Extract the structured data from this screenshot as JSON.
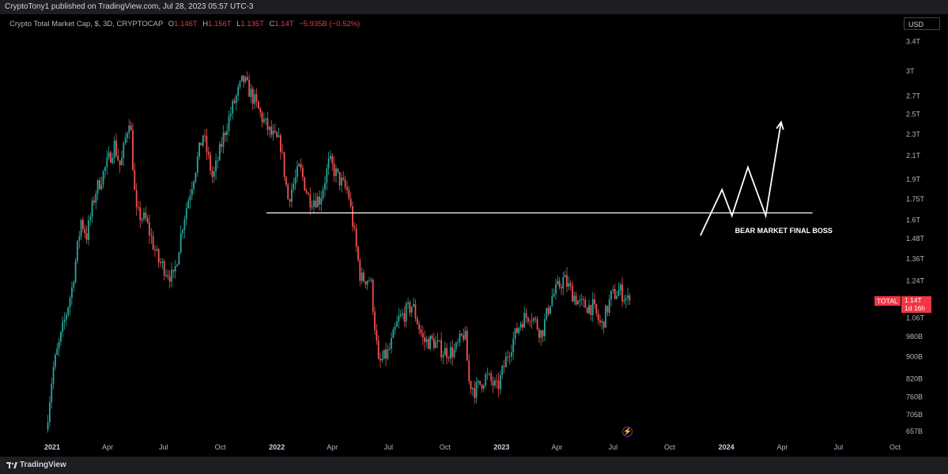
{
  "header": {
    "published": "CryptoTony1 published on TradingView.com, Jul 28, 2023 05:57 UTC-3"
  },
  "legend": {
    "symbol": "Crypto Total Market Cap, $, 3D, CRYPTOCAP",
    "o_key": "O",
    "o_val": "1.146T",
    "h_key": "H",
    "h_val": "1.156T",
    "l_key": "L",
    "l_val": "1.135T",
    "c_key": "C",
    "c_val": "1.14T",
    "change": "−5.935B (−0.52%)"
  },
  "currency_button": "USD",
  "price_tag": {
    "name": "TOTAL",
    "value": "1.14T",
    "countdown": "1d 16h"
  },
  "footer": {
    "brand": "TradingView"
  },
  "colors": {
    "up": "#26a69a",
    "down": "#ef5350",
    "background": "#000000",
    "tag": "#f23645"
  },
  "chart_data": {
    "type": "candlestick",
    "title": "Crypto Total Market Cap, $, 3D, CRYPTOCAP",
    "scale": "log",
    "y_ticks": [
      {
        "label": "3.4T",
        "v": 3400000000000.0
      },
      {
        "label": "3T",
        "v": 3000000000000.0
      },
      {
        "label": "2.7T",
        "v": 2700000000000.0
      },
      {
        "label": "2.5T",
        "v": 2500000000000.0
      },
      {
        "label": "2.3T",
        "v": 2300000000000.0
      },
      {
        "label": "2.1T",
        "v": 2100000000000.0
      },
      {
        "label": "1.9T",
        "v": 1900000000000.0
      },
      {
        "label": "1.75T",
        "v": 1750000000000.0
      },
      {
        "label": "1.6T",
        "v": 1600000000000.0
      },
      {
        "label": "1.48T",
        "v": 1480000000000.0
      },
      {
        "label": "1.36T",
        "v": 1360000000000.0
      },
      {
        "label": "1.24T",
        "v": 1240000000000.0
      },
      {
        "label": "1.06T",
        "v": 1060000000000.0
      },
      {
        "label": "980B",
        "v": 980000000000.0
      },
      {
        "label": "900B",
        "v": 900000000000.0
      },
      {
        "label": "820B",
        "v": 820000000000.0
      },
      {
        "label": "760B",
        "v": 760000000000.0
      },
      {
        "label": "705B",
        "v": 705000000000.0
      },
      {
        "label": "657B",
        "v": 657000000000.0
      }
    ],
    "x_ticks": [
      {
        "label": "2021",
        "date": "2021-01-01",
        "year": true
      },
      {
        "label": "Apr",
        "date": "2021-04-01"
      },
      {
        "label": "Jul",
        "date": "2021-07-01"
      },
      {
        "label": "Oct",
        "date": "2021-10-01"
      },
      {
        "label": "2022",
        "date": "2022-01-01",
        "year": true
      },
      {
        "label": "Apr",
        "date": "2022-04-01"
      },
      {
        "label": "Jul",
        "date": "2022-07-01"
      },
      {
        "label": "Oct",
        "date": "2022-10-01"
      },
      {
        "label": "2023",
        "date": "2023-01-01",
        "year": true
      },
      {
        "label": "Apr",
        "date": "2023-04-01"
      },
      {
        "label": "Jul",
        "date": "2023-07-01"
      },
      {
        "label": "Oct",
        "date": "2023-10-01"
      },
      {
        "label": "2024",
        "date": "2024-01-01",
        "year": true
      },
      {
        "label": "Apr",
        "date": "2024-04-01"
      },
      {
        "label": "Jul",
        "date": "2024-07-01"
      },
      {
        "label": "Oct",
        "date": "2024-10-01"
      }
    ],
    "price_path": [
      {
        "date": "2020-12-25",
        "v": 660000000000.0
      },
      {
        "date": "2021-01-05",
        "v": 850000000000.0
      },
      {
        "date": "2021-01-20",
        "v": 1000000000000.0
      },
      {
        "date": "2021-02-05",
        "v": 1200000000000.0
      },
      {
        "date": "2021-02-20",
        "v": 1600000000000.0
      },
      {
        "date": "2021-03-01",
        "v": 1500000000000.0
      },
      {
        "date": "2021-03-15",
        "v": 1800000000000.0
      },
      {
        "date": "2021-04-01",
        "v": 2000000000000.0
      },
      {
        "date": "2021-04-15",
        "v": 2200000000000.0
      },
      {
        "date": "2021-04-25",
        "v": 2000000000000.0
      },
      {
        "date": "2021-05-10",
        "v": 2500000000000.0
      },
      {
        "date": "2021-05-20",
        "v": 1650000000000.0
      },
      {
        "date": "2021-06-05",
        "v": 1600000000000.0
      },
      {
        "date": "2021-06-25",
        "v": 1350000000000.0
      },
      {
        "date": "2021-07-20",
        "v": 1250000000000.0
      },
      {
        "date": "2021-08-05",
        "v": 1600000000000.0
      },
      {
        "date": "2021-08-25",
        "v": 2000000000000.0
      },
      {
        "date": "2021-09-06",
        "v": 2300000000000.0
      },
      {
        "date": "2021-09-22",
        "v": 1900000000000.0
      },
      {
        "date": "2021-10-10",
        "v": 2300000000000.0
      },
      {
        "date": "2021-10-25",
        "v": 2600000000000.0
      },
      {
        "date": "2021-11-10",
        "v": 2900000000000.0
      },
      {
        "date": "2021-11-25",
        "v": 2700000000000.0
      },
      {
        "date": "2021-12-08",
        "v": 2500000000000.0
      },
      {
        "date": "2021-12-25",
        "v": 2300000000000.0
      },
      {
        "date": "2022-01-10",
        "v": 2200000000000.0
      },
      {
        "date": "2022-01-22",
        "v": 1750000000000.0
      },
      {
        "date": "2022-02-10",
        "v": 2000000000000.0
      },
      {
        "date": "2022-02-25",
        "v": 1750000000000.0
      },
      {
        "date": "2022-03-15",
        "v": 1750000000000.0
      },
      {
        "date": "2022-03-30",
        "v": 2050000000000.0
      },
      {
        "date": "2022-04-15",
        "v": 1900000000000.0
      },
      {
        "date": "2022-04-30",
        "v": 1800000000000.0
      },
      {
        "date": "2022-05-10",
        "v": 1500000000000.0
      },
      {
        "date": "2022-05-20",
        "v": 1250000000000.0
      },
      {
        "date": "2022-06-05",
        "v": 1250000000000.0
      },
      {
        "date": "2022-06-18",
        "v": 870000000000.0
      },
      {
        "date": "2022-07-05",
        "v": 920000000000.0
      },
      {
        "date": "2022-07-20",
        "v": 1050000000000.0
      },
      {
        "date": "2022-08-12",
        "v": 1120000000000.0
      },
      {
        "date": "2022-08-30",
        "v": 960000000000.0
      },
      {
        "date": "2022-09-15",
        "v": 960000000000.0
      },
      {
        "date": "2022-10-01",
        "v": 920000000000.0
      },
      {
        "date": "2022-10-20",
        "v": 920000000000.0
      },
      {
        "date": "2022-11-05",
        "v": 1000000000000.0
      },
      {
        "date": "2022-11-12",
        "v": 810000000000.0
      },
      {
        "date": "2022-11-22",
        "v": 780000000000.0
      },
      {
        "date": "2022-12-10",
        "v": 830000000000.0
      },
      {
        "date": "2022-12-28",
        "v": 785000000000.0
      },
      {
        "date": "2023-01-15",
        "v": 920000000000.0
      },
      {
        "date": "2023-02-05",
        "v": 1050000000000.0
      },
      {
        "date": "2023-02-20",
        "v": 1080000000000.0
      },
      {
        "date": "2023-03-10",
        "v": 990000000000.0
      },
      {
        "date": "2023-03-25",
        "v": 1150000000000.0
      },
      {
        "date": "2023-04-15",
        "v": 1250000000000.0
      },
      {
        "date": "2023-04-28",
        "v": 1180000000000.0
      },
      {
        "date": "2023-05-12",
        "v": 1120000000000.0
      },
      {
        "date": "2023-06-01",
        "v": 1110000000000.0
      },
      {
        "date": "2023-06-15",
        "v": 1020000000000.0
      },
      {
        "date": "2023-07-01",
        "v": 1160000000000.0
      },
      {
        "date": "2023-07-15",
        "v": 1190000000000.0
      },
      {
        "date": "2023-07-28",
        "v": 1140000000000.0
      }
    ],
    "horizontal_line": {
      "v": 1650000000000.0,
      "from": "2021-12-15",
      "to": "2024-05-20"
    },
    "projection_path": [
      {
        "date": "2023-11-20",
        "v": 1500000000000.0
      },
      {
        "date": "2023-12-25",
        "v": 1820000000000.0
      },
      {
        "date": "2024-01-10",
        "v": 1630000000000.0
      },
      {
        "date": "2024-02-05",
        "v": 2000000000000.0
      },
      {
        "date": "2024-03-05",
        "v": 1630000000000.0
      },
      {
        "date": "2024-03-30",
        "v": 2420000000000.0
      }
    ],
    "annotation": {
      "text": "BEAR MARKET FINAL BOSS",
      "date": "2024-02-20",
      "v": 1530000000000.0
    }
  }
}
